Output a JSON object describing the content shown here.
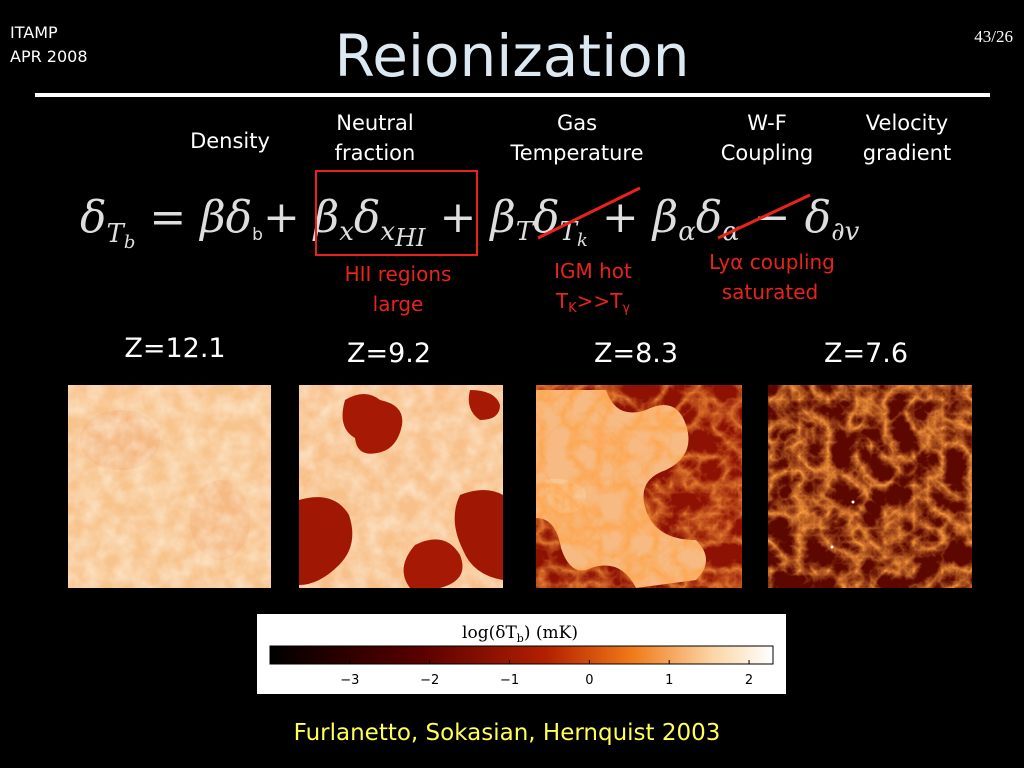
{
  "header": {
    "venue": [
      "ITAMP",
      "APR 2008"
    ],
    "title": "Reionization",
    "page": "43/26"
  },
  "terms": [
    {
      "lines": [
        "Density"
      ]
    },
    {
      "lines": [
        "Neutral",
        "fraction"
      ]
    },
    {
      "lines": [
        "Gas",
        "Temperature"
      ]
    },
    {
      "lines": [
        "W-F",
        "Coupling"
      ]
    },
    {
      "lines": [
        "Velocity",
        "gradient"
      ]
    }
  ],
  "equation": [
    {
      "text": "δ",
      "sub": "T",
      "subsub": "b"
    },
    {
      "text": " = βδ",
      "sub": "b"
    },
    {
      "text": "+ β",
      "sub": "x"
    },
    {
      "text": "δ",
      "sub": "x",
      "subsub": "HI"
    },
    {
      "text": " + β",
      "sub": "T"
    },
    {
      "text": "δ",
      "sub": "T",
      "subsub": "k"
    },
    {
      "text": " + β",
      "sub": "α"
    },
    {
      "text": "δ",
      "sub": "α"
    },
    {
      "text": " − δ",
      "sub": "∂v"
    }
  ],
  "annotations": [
    {
      "lines": [
        "HII regions",
        "large"
      ]
    },
    {
      "line1": "IGM hot",
      "line2": [
        {
          "t": "T"
        },
        {
          "s": "K"
        },
        {
          "t": ">>T"
        },
        {
          "s": "γ"
        }
      ]
    },
    {
      "lines": [
        "Lyα coupling",
        "saturated"
      ]
    }
  ],
  "redshifts": [
    "Z=12.1",
    "Z=9.2",
    "Z=8.3",
    "Z=7.6"
  ],
  "colorbar": {
    "label": "log(δT",
    "label_sub": "b",
    "label_end": ")  (mK)",
    "lim": [
      -4,
      2.3
    ],
    "ticks": [
      {
        "value": -3,
        "label": "−3"
      },
      {
        "value": -2,
        "label": "−2"
      },
      {
        "value": -1,
        "label": "−1"
      },
      0,
      1,
      2
    ]
  },
  "citation": "Furlanetto, Sokasian, Hernquist 2003"
}
